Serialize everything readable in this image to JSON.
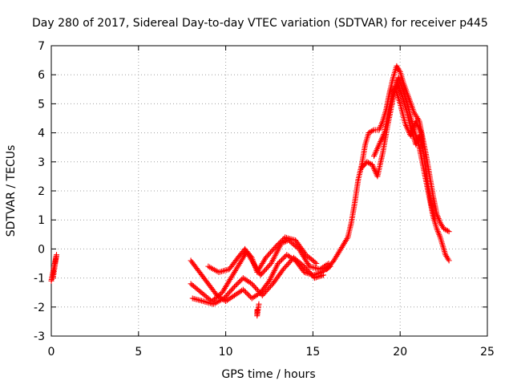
{
  "chart_data": {
    "type": "scatter",
    "title": "Day 280 of 2017, Sidereal Day-to-day VTEC variation (SDTVAR) for receiver p445",
    "xlabel": "GPS time / hours",
    "ylabel": "SDTVAR / TECUs",
    "xlim": [
      0,
      25
    ],
    "ylim": [
      -3,
      7
    ],
    "x_ticks": [
      0,
      5,
      10,
      15,
      20,
      25
    ],
    "y_ticks": [
      -3,
      -2,
      -1,
      0,
      1,
      2,
      3,
      4,
      5,
      6,
      7
    ],
    "x_tick_labels": [
      "0",
      "5",
      "10",
      "15",
      "20",
      "25"
    ],
    "y_tick_labels": [
      "-3",
      "-2",
      "-1",
      "0",
      "1",
      "2",
      "3",
      "4",
      "5",
      "6",
      "7"
    ],
    "grid": true,
    "marker": "+",
    "color": "#ff0000",
    "series": [
      {
        "name": "SDTVAR",
        "tracks": [
          [
            [
              0.0,
              -1.1
            ],
            [
              0.1,
              -0.8
            ],
            [
              0.2,
              -0.5
            ],
            [
              0.3,
              -0.2
            ],
            [
              0.2,
              -0.6
            ],
            [
              0.1,
              -1.0
            ]
          ],
          [
            [
              8.0,
              -0.4
            ],
            [
              8.5,
              -0.8
            ],
            [
              9.0,
              -1.2
            ],
            [
              9.5,
              -1.6
            ],
            [
              10.0,
              -1.8
            ],
            [
              10.5,
              -1.6
            ],
            [
              11.0,
              -1.4
            ],
            [
              11.5,
              -1.7
            ],
            [
              12.0,
              -1.5
            ],
            [
              12.5,
              -1.1
            ],
            [
              13.0,
              -0.5
            ],
            [
              13.5,
              -0.2
            ],
            [
              14.0,
              -0.4
            ],
            [
              14.5,
              -0.8
            ],
            [
              15.0,
              -0.9
            ],
            [
              15.5,
              -0.8
            ],
            [
              16.0,
              -0.6
            ]
          ],
          [
            [
              8.0,
              -1.2
            ],
            [
              8.6,
              -1.5
            ],
            [
              9.2,
              -1.8
            ],
            [
              9.8,
              -1.5
            ],
            [
              10.3,
              -1.0
            ],
            [
              10.8,
              -0.5
            ],
            [
              11.2,
              -0.1
            ],
            [
              11.6,
              -0.5
            ],
            [
              12.0,
              -0.9
            ],
            [
              12.6,
              -0.5
            ],
            [
              13.2,
              0.2
            ],
            [
              13.6,
              0.3
            ],
            [
              14.2,
              0.0
            ],
            [
              14.8,
              -0.6
            ],
            [
              15.4,
              -0.7
            ],
            [
              15.9,
              -0.5
            ]
          ],
          [
            [
              8.1,
              -1.7
            ],
            [
              8.7,
              -1.8
            ],
            [
              9.3,
              -1.9
            ],
            [
              9.9,
              -1.7
            ],
            [
              10.5,
              -1.3
            ],
            [
              11.0,
              -1.0
            ],
            [
              11.5,
              -1.2
            ],
            [
              12.1,
              -1.6
            ],
            [
              12.7,
              -1.2
            ],
            [
              13.3,
              -0.7
            ],
            [
              13.9,
              -0.3
            ],
            [
              14.5,
              -0.6
            ],
            [
              15.1,
              -1.0
            ],
            [
              15.6,
              -0.9
            ]
          ],
          [
            [
              9.0,
              -0.6
            ],
            [
              9.6,
              -0.8
            ],
            [
              10.2,
              -0.7
            ],
            [
              10.7,
              -0.3
            ],
            [
              11.1,
              0.0
            ],
            [
              11.5,
              -0.3
            ],
            [
              11.8,
              -0.8
            ],
            [
              12.3,
              -0.3
            ],
            [
              12.9,
              0.1
            ],
            [
              13.4,
              0.4
            ],
            [
              14.0,
              0.3
            ],
            [
              14.6,
              -0.2
            ],
            [
              15.2,
              -0.5
            ]
          ],
          [
            [
              11.8,
              -2.1
            ],
            [
              11.8,
              -2.3
            ],
            [
              11.9,
              -1.9
            ]
          ],
          [
            [
              15.8,
              -0.7
            ],
            [
              16.2,
              -0.4
            ],
            [
              16.6,
              0.0
            ],
            [
              17.0,
              0.4
            ],
            [
              17.2,
              0.9
            ],
            [
              17.4,
              1.6
            ],
            [
              17.6,
              2.4
            ],
            [
              17.8,
              2.9
            ],
            [
              18.0,
              3.6
            ],
            [
              18.2,
              4.0
            ],
            [
              18.5,
              4.1
            ],
            [
              18.8,
              4.1
            ],
            [
              19.0,
              4.4
            ],
            [
              19.2,
              4.8
            ],
            [
              19.4,
              5.4
            ],
            [
              19.6,
              5.9
            ],
            [
              19.8,
              6.3
            ],
            [
              20.0,
              6.1
            ],
            [
              20.2,
              5.7
            ],
            [
              20.5,
              5.2
            ],
            [
              20.8,
              4.7
            ],
            [
              21.1,
              4.4
            ],
            [
              21.3,
              3.8
            ],
            [
              21.5,
              3.2
            ],
            [
              21.7,
              2.5
            ],
            [
              21.9,
              1.8
            ],
            [
              22.1,
              1.2
            ],
            [
              22.3,
              0.9
            ],
            [
              22.5,
              0.7
            ],
            [
              22.8,
              0.6
            ]
          ],
          [
            [
              17.8,
              2.8
            ],
            [
              18.1,
              3.0
            ],
            [
              18.4,
              2.9
            ],
            [
              18.7,
              2.5
            ],
            [
              19.0,
              3.3
            ],
            [
              19.3,
              4.3
            ],
            [
              19.6,
              5.2
            ],
            [
              19.9,
              5.9
            ],
            [
              20.2,
              5.4
            ],
            [
              20.5,
              4.8
            ],
            [
              20.8,
              4.1
            ],
            [
              21.1,
              3.5
            ],
            [
              21.4,
              2.6
            ],
            [
              21.7,
              1.7
            ],
            [
              21.9,
              1.1
            ],
            [
              22.1,
              0.7
            ],
            [
              22.3,
              0.4
            ],
            [
              22.6,
              -0.2
            ],
            [
              22.8,
              -0.4
            ]
          ],
          [
            [
              19.8,
              5.8
            ],
            [
              20.1,
              5.3
            ],
            [
              20.4,
              4.7
            ],
            [
              20.6,
              4.2
            ],
            [
              20.9,
              3.6
            ],
            [
              21.1,
              3.9
            ],
            [
              21.3,
              3.5
            ]
          ],
          [
            [
              18.5,
              3.2
            ],
            [
              18.8,
              3.6
            ],
            [
              19.1,
              4.0
            ],
            [
              19.4,
              4.9
            ],
            [
              19.7,
              5.6
            ],
            [
              20.0,
              5.0
            ],
            [
              20.3,
              4.3
            ],
            [
              20.6,
              3.9
            ],
            [
              20.9,
              4.4
            ],
            [
              21.2,
              4.0
            ],
            [
              21.4,
              3.0
            ],
            [
              21.6,
              2.2
            ],
            [
              21.8,
              1.5
            ],
            [
              22.0,
              1.0
            ]
          ]
        ]
      }
    ]
  }
}
